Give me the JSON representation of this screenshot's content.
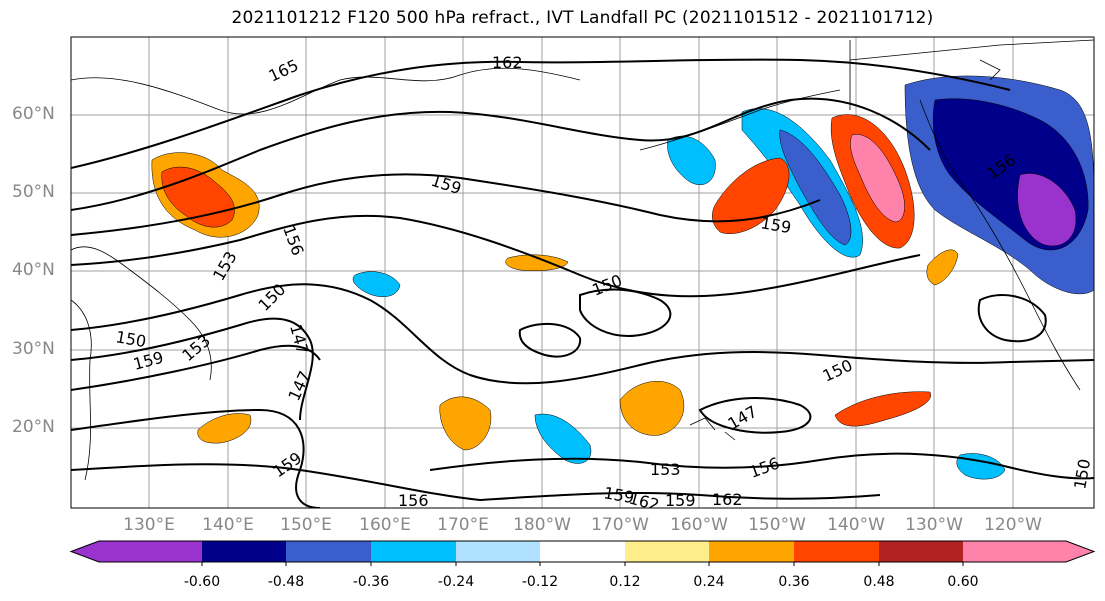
{
  "title": "2021101212 F120 500 hPa refract., IVT Landfall PC (2021101512 - 2021101712)",
  "lat_labels": [
    "60°N",
    "50°N",
    "40°N",
    "30°N",
    "20°N"
  ],
  "lon_labels": [
    "130°E",
    "140°E",
    "150°E",
    "160°E",
    "170°E",
    "180°W",
    "170°W",
    "160°W",
    "150°W",
    "140°W",
    "130°W",
    "120°W"
  ],
  "contour_labels": [
    "165",
    "162",
    "159",
    "159",
    "156",
    "153",
    "150",
    "150",
    "150",
    "147",
    "147",
    "159",
    "153",
    "156",
    "159",
    "156",
    "153",
    "150",
    "162",
    "159",
    "162",
    "147",
    "156",
    "159",
    "150"
  ],
  "colorbar": {
    "colors": [
      "#9a32cd",
      "#00008b",
      "#3a5fcd",
      "#00bfff",
      "#b0e2ff",
      "#ffffff",
      "#ffec8b",
      "#ffa500",
      "#ff4500",
      "#b22222",
      "#ff82ab"
    ],
    "tick_labels": [
      "-0.60",
      "-0.48",
      "-0.36",
      "-0.24",
      "-0.12",
      "0.12",
      "0.24",
      "0.36",
      "0.48",
      "0.60"
    ]
  },
  "shading_colors": {
    "neg_strong": "#00008b",
    "neg_mid": "#3a5fcd",
    "neg_weak": "#00bfff",
    "neg_faint": "#b0e2ff",
    "neg_extreme": "#9a32cd",
    "pos_faint": "#ffec8b",
    "pos_weak": "#ffa500",
    "pos_mid": "#ff4500",
    "pos_strong": "#b22222",
    "pos_extreme": "#ff82ab"
  }
}
